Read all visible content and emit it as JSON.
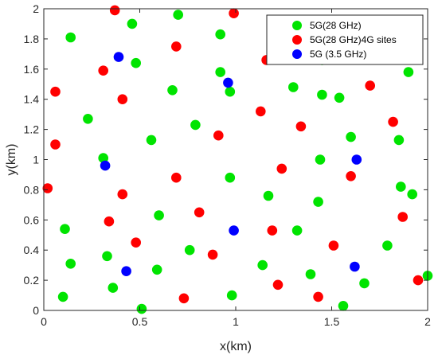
{
  "chart_data": {
    "type": "scatter",
    "xlabel": "x(km)",
    "ylabel": "y(km)",
    "xlim": [
      0,
      2
    ],
    "ylim": [
      0,
      2
    ],
    "xticks": [
      0,
      0.5,
      1,
      1.5,
      2
    ],
    "xtick_labels": [
      "0",
      "0.5",
      "1",
      "1.5",
      "2"
    ],
    "yticks": [
      0,
      0.2,
      0.4,
      0.6,
      0.8,
      1,
      1.2,
      1.4,
      1.6,
      1.8,
      2
    ],
    "ytick_labels": [
      "0",
      "0.2",
      "0.4",
      "0.6",
      "0.8",
      "1",
      "1.2",
      "1.4",
      "1.6",
      "1.8",
      "2"
    ],
    "grid": false,
    "legend_position": "top-right",
    "series": [
      {
        "name": "5G(28 GHz)",
        "color": "#00e400",
        "points": [
          [
            0.14,
            1.81
          ],
          [
            0.46,
            1.9
          ],
          [
            0.7,
            1.96
          ],
          [
            0.48,
            1.64
          ],
          [
            0.92,
            1.83
          ],
          [
            0.92,
            1.58
          ],
          [
            0.97,
            1.45
          ],
          [
            0.67,
            1.46
          ],
          [
            0.23,
            1.27
          ],
          [
            0.56,
            1.13
          ],
          [
            0.79,
            1.23
          ],
          [
            0.31,
            1.01
          ],
          [
            0.97,
            0.88
          ],
          [
            0.6,
            0.63
          ],
          [
            0.11,
            0.54
          ],
          [
            0.33,
            0.36
          ],
          [
            0.14,
            0.31
          ],
          [
            0.59,
            0.27
          ],
          [
            0.76,
            0.4
          ],
          [
            0.36,
            0.15
          ],
          [
            0.1,
            0.09
          ],
          [
            0.51,
            0.01
          ],
          [
            0.98,
            0.1
          ],
          [
            1.17,
            0.76
          ],
          [
            1.14,
            0.3
          ],
          [
            1.32,
            0.53
          ],
          [
            1.43,
            0.72
          ],
          [
            1.44,
            1.0
          ],
          [
            1.6,
            1.15
          ],
          [
            1.45,
            1.43
          ],
          [
            1.54,
            1.41
          ],
          [
            1.3,
            1.48
          ],
          [
            1.45,
            1.66
          ],
          [
            1.9,
            1.58
          ],
          [
            1.93,
            1.92
          ],
          [
            1.25,
            1.87
          ],
          [
            1.85,
            1.13
          ],
          [
            1.86,
            0.82
          ],
          [
            1.92,
            0.77
          ],
          [
            1.79,
            0.43
          ],
          [
            1.67,
            0.18
          ],
          [
            1.56,
            0.03
          ],
          [
            1.39,
            0.24
          ],
          [
            2.0,
            0.23
          ]
        ]
      },
      {
        "name": "5G(28 GHz)4G sites",
        "color": "#ff0000",
        "points": [
          [
            0.37,
            1.99
          ],
          [
            0.99,
            1.97
          ],
          [
            0.69,
            1.75
          ],
          [
            0.31,
            1.59
          ],
          [
            0.06,
            1.45
          ],
          [
            0.41,
            1.4
          ],
          [
            0.06,
            1.1
          ],
          [
            0.91,
            1.16
          ],
          [
            0.02,
            0.81
          ],
          [
            0.41,
            0.77
          ],
          [
            0.69,
            0.88
          ],
          [
            0.34,
            0.59
          ],
          [
            0.81,
            0.65
          ],
          [
            0.48,
            0.45
          ],
          [
            0.88,
            0.37
          ],
          [
            0.73,
            0.08
          ],
          [
            1.16,
            1.66
          ],
          [
            1.13,
            1.32
          ],
          [
            1.34,
            1.22
          ],
          [
            1.24,
            0.94
          ],
          [
            1.19,
            0.53
          ],
          [
            1.22,
            0.17
          ],
          [
            1.43,
            0.09
          ],
          [
            1.51,
            0.43
          ],
          [
            1.6,
            0.89
          ],
          [
            1.7,
            1.49
          ],
          [
            1.82,
            1.25
          ],
          [
            1.87,
            0.62
          ],
          [
            1.95,
            0.2
          ],
          [
            1.47,
            1.92
          ]
        ]
      },
      {
        "name": "5G (3.5 GHz)",
        "color": "#0000ff",
        "points": [
          [
            0.39,
            1.68
          ],
          [
            0.96,
            1.51
          ],
          [
            0.32,
            0.96
          ],
          [
            1.63,
            1.0
          ],
          [
            0.99,
            0.53
          ],
          [
            0.43,
            0.26
          ],
          [
            1.62,
            0.29
          ]
        ]
      }
    ]
  }
}
